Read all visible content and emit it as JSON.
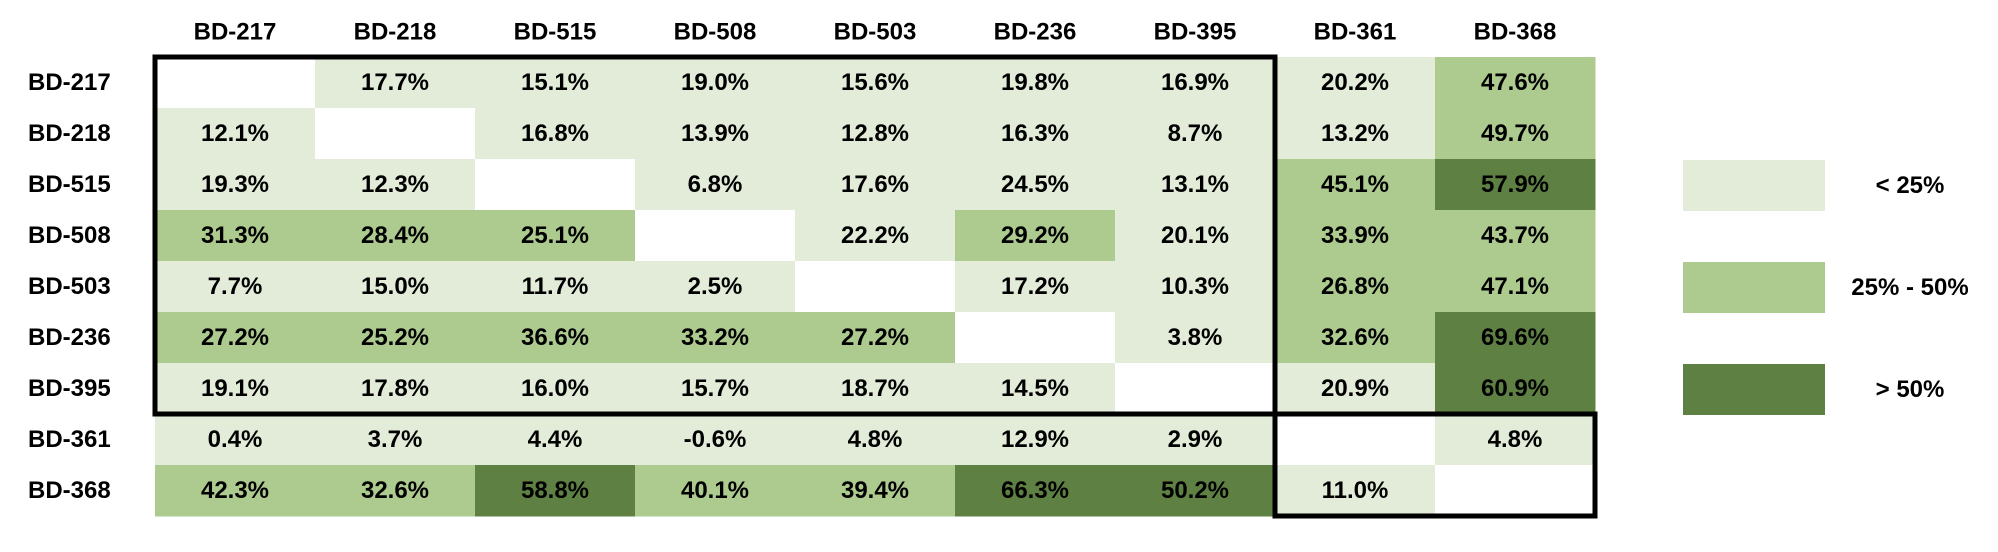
{
  "chart_data": {
    "type": "heatmap",
    "title": "",
    "xlabel": "",
    "ylabel": "",
    "columns": [
      "BD-217",
      "BD-218",
      "BD-515",
      "BD-508",
      "BD-503",
      "BD-236",
      "BD-395",
      "BD-361",
      "BD-368"
    ],
    "rows": [
      "BD-217",
      "BD-218",
      "BD-515",
      "BD-508",
      "BD-503",
      "BD-236",
      "BD-395",
      "BD-361",
      "BD-368"
    ],
    "values": [
      [
        null,
        17.7,
        15.1,
        19.0,
        15.6,
        19.8,
        16.9,
        20.2,
        47.6
      ],
      [
        12.1,
        null,
        16.8,
        13.9,
        12.8,
        16.3,
        8.7,
        13.2,
        49.7
      ],
      [
        19.3,
        12.3,
        null,
        6.8,
        17.6,
        24.5,
        13.1,
        45.1,
        57.9
      ],
      [
        31.3,
        28.4,
        25.1,
        null,
        22.2,
        29.2,
        20.1,
        33.9,
        43.7
      ],
      [
        7.7,
        15.0,
        11.7,
        2.5,
        null,
        17.2,
        10.3,
        26.8,
        47.1
      ],
      [
        27.2,
        25.2,
        36.6,
        33.2,
        27.2,
        null,
        3.8,
        32.6,
        69.6
      ],
      [
        19.1,
        17.8,
        16.0,
        15.7,
        18.7,
        14.5,
        null,
        20.9,
        60.9
      ],
      [
        0.4,
        3.7,
        4.4,
        -0.6,
        4.8,
        12.9,
        2.9,
        null,
        4.8
      ],
      [
        42.3,
        32.6,
        58.8,
        40.1,
        39.4,
        66.3,
        50.2,
        11.0,
        null
      ]
    ],
    "value_suffix": "%",
    "outlined_blocks": [
      {
        "rows": [
          0,
          6
        ],
        "cols": [
          0,
          6
        ]
      },
      {
        "rows": [
          7,
          8
        ],
        "cols": [
          7,
          8
        ]
      }
    ],
    "legend": {
      "placement": "right",
      "items": [
        {
          "label": "< 25%",
          "color": "#e3ecd9",
          "min": null,
          "max": 25
        },
        {
          "label": "25% - 50%",
          "color": "#aecb8f",
          "min": 25,
          "max": 50
        },
        {
          "label": "> 50%",
          "color": "#5e8143",
          "min": 50,
          "max": null
        }
      ]
    },
    "grid": false
  }
}
